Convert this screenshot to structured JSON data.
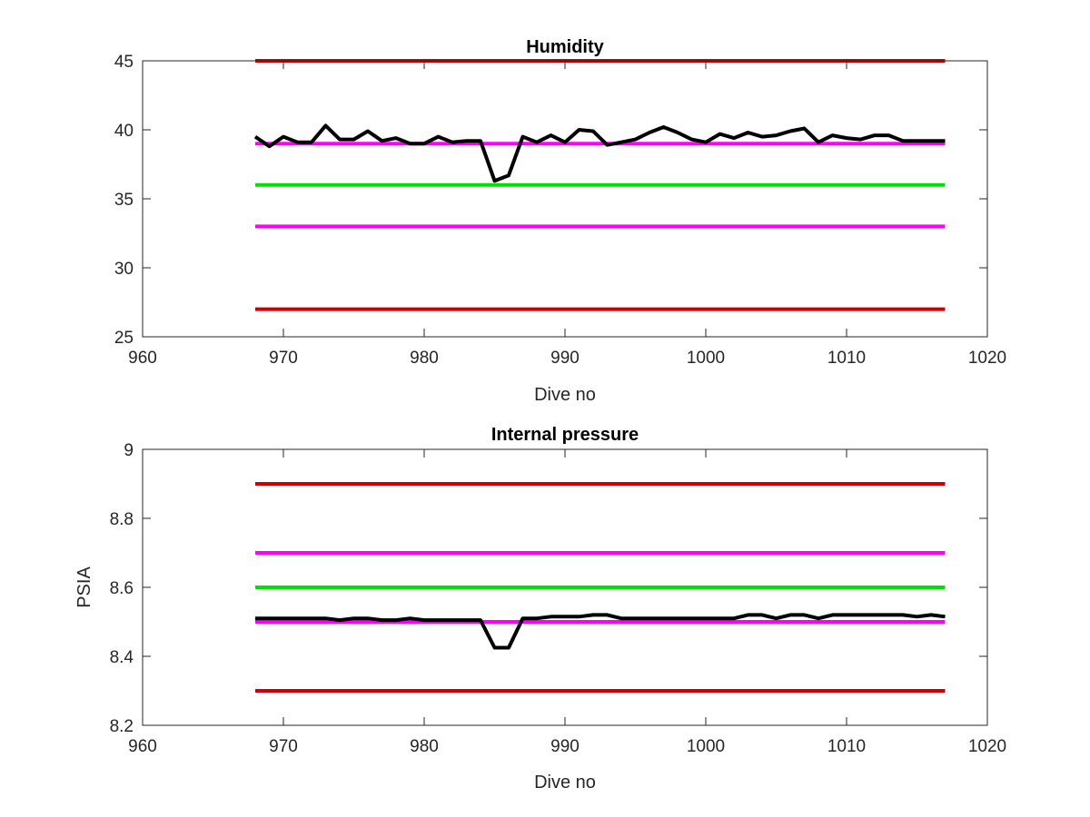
{
  "chart_data": [
    {
      "type": "line",
      "title": "Humidity",
      "xlabel": "Dive no",
      "ylabel": "",
      "xlim": [
        960,
        1020
      ],
      "ylim": [
        25,
        45
      ],
      "xticks": [
        960,
        970,
        980,
        990,
        1000,
        1010,
        1020
      ],
      "yticks": [
        25,
        30,
        35,
        40,
        45
      ],
      "xtick_labels": [
        "960",
        "970",
        "980",
        "990",
        "1000",
        "1010",
        "1020"
      ],
      "ytick_labels": [
        "25",
        "30",
        "35",
        "40",
        "45"
      ],
      "grid": false,
      "reference_lines": [
        {
          "y": 45,
          "x_range": [
            968,
            1017
          ],
          "color": "#d00000"
        },
        {
          "y": 39,
          "x_range": [
            968,
            1017
          ],
          "color": "#ff00ff"
        },
        {
          "y": 36,
          "x_range": [
            968,
            1017
          ],
          "color": "#00e000"
        },
        {
          "y": 33,
          "x_range": [
            968,
            1017
          ],
          "color": "#ff00ff"
        },
        {
          "y": 27,
          "x_range": [
            968,
            1017
          ],
          "color": "#d00000"
        }
      ],
      "series": [
        {
          "color": "#000000",
          "x": [
            968,
            969,
            970,
            971,
            972,
            973,
            974,
            975,
            976,
            977,
            978,
            979,
            980,
            981,
            982,
            983,
            984,
            985,
            986,
            987,
            988,
            989,
            990,
            991,
            992,
            993,
            994,
            995,
            996,
            997,
            998,
            999,
            1000,
            1001,
            1002,
            1003,
            1004,
            1005,
            1006,
            1007,
            1008,
            1009,
            1010,
            1011,
            1012,
            1013,
            1014,
            1015,
            1016,
            1017
          ],
          "y": [
            39.5,
            38.8,
            39.5,
            39.1,
            39.1,
            40.3,
            39.3,
            39.3,
            39.9,
            39.2,
            39.4,
            39.0,
            39.0,
            39.5,
            39.1,
            39.2,
            39.2,
            36.3,
            36.7,
            39.5,
            39.1,
            39.6,
            39.1,
            40.0,
            39.9,
            38.9,
            39.1,
            39.3,
            39.8,
            40.2,
            39.8,
            39.3,
            39.1,
            39.7,
            39.4,
            39.8,
            39.5,
            39.6,
            39.9,
            40.1,
            39.1,
            39.6,
            39.4,
            39.3,
            39.6,
            39.6,
            39.2,
            39.2,
            39.2,
            39.2
          ]
        }
      ]
    },
    {
      "type": "line",
      "title": "Internal pressure",
      "xlabel": "Dive no",
      "ylabel": "PSIA",
      "xlim": [
        960,
        1020
      ],
      "ylim": [
        8.2,
        9
      ],
      "xticks": [
        960,
        970,
        980,
        990,
        1000,
        1010,
        1020
      ],
      "yticks": [
        8.2,
        8.4,
        8.6,
        8.8,
        9
      ],
      "xtick_labels": [
        "960",
        "970",
        "980",
        "990",
        "1000",
        "1010",
        "1020"
      ],
      "ytick_labels": [
        "8.2",
        "8.4",
        "8.6",
        "8.8",
        "9"
      ],
      "grid": false,
      "reference_lines": [
        {
          "y": 8.9,
          "x_range": [
            968,
            1017
          ],
          "color": "#d00000"
        },
        {
          "y": 8.7,
          "x_range": [
            968,
            1017
          ],
          "color": "#ff00ff"
        },
        {
          "y": 8.6,
          "x_range": [
            968,
            1017
          ],
          "color": "#00e000"
        },
        {
          "y": 8.5,
          "x_range": [
            968,
            1017
          ],
          "color": "#ff00ff"
        },
        {
          "y": 8.3,
          "x_range": [
            968,
            1017
          ],
          "color": "#d00000"
        }
      ],
      "series": [
        {
          "color": "#000000",
          "x": [
            968,
            969,
            970,
            971,
            972,
            973,
            974,
            975,
            976,
            977,
            978,
            979,
            980,
            981,
            982,
            983,
            984,
            985,
            986,
            987,
            988,
            989,
            990,
            991,
            992,
            993,
            994,
            995,
            996,
            997,
            998,
            999,
            1000,
            1001,
            1002,
            1003,
            1004,
            1005,
            1006,
            1007,
            1008,
            1009,
            1010,
            1011,
            1012,
            1013,
            1014,
            1015,
            1016,
            1017
          ],
          "y": [
            8.51,
            8.51,
            8.51,
            8.51,
            8.51,
            8.51,
            8.505,
            8.51,
            8.51,
            8.505,
            8.505,
            8.51,
            8.505,
            8.505,
            8.505,
            8.505,
            8.505,
            8.425,
            8.425,
            8.51,
            8.51,
            8.515,
            8.515,
            8.515,
            8.52,
            8.52,
            8.51,
            8.51,
            8.51,
            8.51,
            8.51,
            8.51,
            8.51,
            8.51,
            8.51,
            8.52,
            8.52,
            8.51,
            8.52,
            8.52,
            8.51,
            8.52,
            8.52,
            8.52,
            8.52,
            8.52,
            8.52,
            8.515,
            8.52,
            8.515
          ]
        }
      ]
    }
  ]
}
